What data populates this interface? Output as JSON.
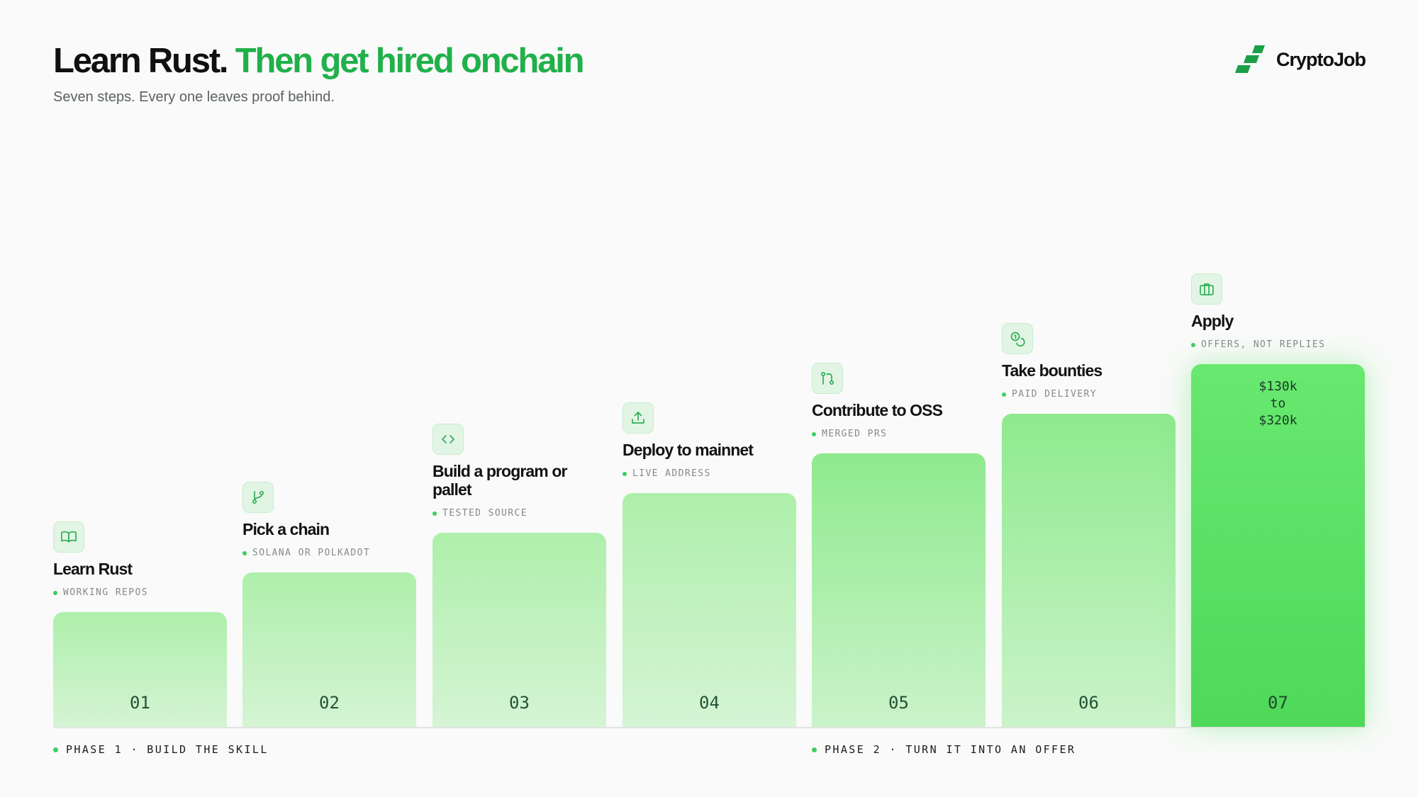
{
  "header": {
    "title_dark": "Learn Rust.",
    "title_green": "Then get hired onchain",
    "subtitle": "Seven steps. Every one leaves proof behind."
  },
  "brand": {
    "name": "CryptoJob",
    "logo_icon": "stairs-logo-icon"
  },
  "colors": {
    "accent": "#21b04a",
    "bar_light": "#aeefab",
    "bar_final": "#5fe067"
  },
  "steps": [
    {
      "num": "01",
      "title": "Learn Rust",
      "tag": "WORKING REPOS",
      "icon": "book-icon"
    },
    {
      "num": "02",
      "title": "Pick a chain",
      "tag": "SOLANA OR POLKADOT",
      "icon": "branch-icon"
    },
    {
      "num": "03",
      "title": "Build a program or pallet",
      "tag": "TESTED SOURCE",
      "icon": "code-icon"
    },
    {
      "num": "04",
      "title": "Deploy to mainnet",
      "tag": "LIVE ADDRESS",
      "icon": "upload-icon"
    },
    {
      "num": "05",
      "title": "Contribute to OSS",
      "tag": "MERGED PRS",
      "icon": "pull-request-icon"
    },
    {
      "num": "06",
      "title": "Take bounties",
      "tag": "PAID DELIVERY",
      "icon": "coins-icon"
    },
    {
      "num": "07",
      "title": "Apply",
      "tag": "OFFERS, NOT REPLIES",
      "icon": "briefcase-icon",
      "salary": {
        "low": "$130k",
        "to": "to",
        "high": "$320k"
      }
    }
  ],
  "phases": [
    {
      "label": "PHASE 1 · BUILD THE SKILL"
    },
    {
      "label": "PHASE 2 · TURN IT INTO AN OFFER"
    }
  ]
}
